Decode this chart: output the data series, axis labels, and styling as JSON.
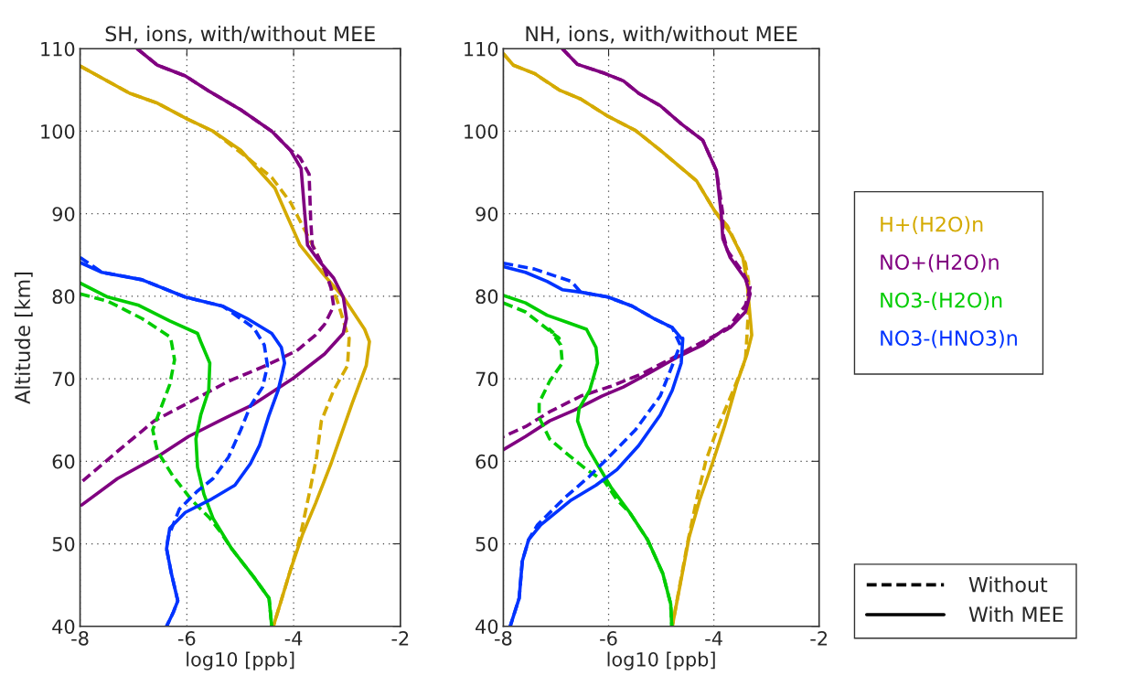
{
  "chart_data": [
    {
      "type": "line",
      "title": "SH, ions, with/without MEE",
      "xlabel": "log10 [ppb]",
      "ylabel": "Altitude [km]",
      "xlim": [
        -8,
        -2
      ],
      "ylim": [
        40,
        110
      ],
      "xticks": [
        -8,
        -6,
        -4,
        -2
      ],
      "yticks": [
        40,
        50,
        60,
        70,
        80,
        90,
        100,
        110
      ],
      "grid": true,
      "series": [
        {
          "color": "#d4aa00",
          "line_style": "dashed",
          "x": [
            -8,
            -7.07,
            -6.55,
            -6.0,
            -5.51,
            -4.87,
            -4.41,
            -4.06,
            -3.83,
            -3.59,
            -3.36,
            -3.19,
            -3.01,
            -2.96,
            -2.99,
            -3.25,
            -3.48,
            -3.57,
            -3.71,
            -3.88,
            -4.06,
            -4.38
          ],
          "values": [
            107.9,
            104.6,
            103.4,
            101.5,
            100,
            96.8,
            94.4,
            91.4,
            88.5,
            85.5,
            82.2,
            79.6,
            75.8,
            74.9,
            71.6,
            68.6,
            64.9,
            60.5,
            56,
            50.8,
            46.8,
            40
          ]
        },
        {
          "color": "#d4aa00",
          "line_style": "solid",
          "x": [
            -8,
            -7.07,
            -6.55,
            -6.0,
            -5.51,
            -4.99,
            -4.35,
            -4.14,
            -3.88,
            -3.42,
            -3.07,
            -2.67,
            -2.58,
            -2.64,
            -2.9,
            -3.1,
            -3.3,
            -3.59,
            -3.83,
            -4.06,
            -4.38
          ],
          "values": [
            107.9,
            104.6,
            103.4,
            101.5,
            100,
            97.7,
            93.1,
            90,
            86.2,
            82.5,
            79.9,
            76,
            74.5,
            71.6,
            67.1,
            63.4,
            59.7,
            54.9,
            51.2,
            46.8,
            40
          ]
        },
        {
          "color": "#800080",
          "line_style": "dashed",
          "x": [
            -6.93,
            -6.55,
            -6.03,
            -5.57,
            -4.99,
            -4.41,
            -4.06,
            -3.88,
            -3.71,
            -3.68,
            -3.65,
            -3.42,
            -3.3,
            -3.25,
            -3.42,
            -3.59,
            -3.94,
            -4.52,
            -5.22,
            -5.97,
            -6.61,
            -7.3,
            -7.97
          ],
          "values": [
            110,
            108,
            106.7,
            104.8,
            102.6,
            100,
            97.7,
            96.8,
            94.8,
            89.2,
            86.2,
            83.3,
            81,
            78.8,
            76.6,
            75.3,
            73.4,
            71.6,
            69.7,
            67.1,
            64.9,
            61.2,
            57.5
          ]
        },
        {
          "color": "#800080",
          "line_style": "solid",
          "x": [
            -6.93,
            -6.55,
            -6.03,
            -5.57,
            -4.99,
            -4.41,
            -4.06,
            -3.86,
            -3.8,
            -3.74,
            -3.54,
            -3.25,
            -3.07,
            -3.01,
            -3.07,
            -3.42,
            -4.0,
            -4.75,
            -5.39,
            -5.97,
            -6.49,
            -7.3,
            -7.97
          ],
          "values": [
            110,
            108,
            106.7,
            104.8,
            102.6,
            100,
            97.7,
            95.5,
            90.7,
            86.2,
            84.4,
            82.2,
            79.9,
            77.3,
            75.5,
            73,
            70.1,
            66.9,
            64.9,
            63,
            60.8,
            57.9,
            54.7
          ]
        },
        {
          "color": "#00cc00",
          "line_style": "dashed",
          "x": [
            -8,
            -7.48,
            -6.84,
            -6.32,
            -6.29,
            -6.23,
            -6.32,
            -6.49,
            -6.64,
            -6.55,
            -6.26,
            -5.91,
            -5.57,
            -5.39,
            -5.16,
            -4.75,
            -4.46,
            -4.41
          ],
          "values": [
            80.3,
            79.4,
            77.3,
            75.1,
            74.5,
            72.3,
            69.3,
            66.4,
            63.8,
            61.2,
            58.2,
            55.3,
            53.1,
            51.6,
            49.4,
            46,
            43.4,
            40
          ]
        },
        {
          "color": "#00cc00",
          "line_style": "solid",
          "x": [
            -8,
            -7.48,
            -6.9,
            -6.32,
            -5.8,
            -5.74,
            -5.57,
            -5.59,
            -5.74,
            -5.83,
            -5.8,
            -5.68,
            -5.51,
            -5.16,
            -4.75,
            -4.46,
            -4.41
          ],
          "values": [
            81.6,
            79.9,
            78.9,
            77,
            75.5,
            74.5,
            71.9,
            68.6,
            65.6,
            62.7,
            59.3,
            56,
            53.1,
            49.4,
            46,
            43.4,
            40
          ]
        },
        {
          "color": "#0033ff",
          "line_style": "dashed",
          "x": [
            -8,
            -7.59,
            -6.84,
            -6.03,
            -5.33,
            -4.75,
            -4.55,
            -4.49,
            -4.58,
            -4.81,
            -4.99,
            -5.22,
            -5.51,
            -5.8,
            -6.14,
            -6.35,
            -6.38,
            -6.29,
            -6.17,
            -6.26,
            -6.38
          ],
          "values": [
            84.7,
            82.9,
            82,
            79.9,
            78.8,
            76.2,
            74.1,
            71.6,
            69,
            66.7,
            63.8,
            60.5,
            57.9,
            56.4,
            54.2,
            50.8,
            49.4,
            46.4,
            43.1,
            41.6,
            40
          ]
        },
        {
          "color": "#0033ff",
          "line_style": "solid",
          "x": [
            -8,
            -7.59,
            -6.84,
            -6.03,
            -5.33,
            -4.87,
            -4.41,
            -4.23,
            -4.17,
            -4.29,
            -4.46,
            -4.64,
            -4.81,
            -5.1,
            -5.57,
            -6.03,
            -6.32,
            -6.38,
            -6.29,
            -6.17,
            -6.26,
            -6.38
          ],
          "values": [
            84.1,
            82.9,
            82,
            79.9,
            78.8,
            77.3,
            75.5,
            73.8,
            71.9,
            68.6,
            65.6,
            61.9,
            59.7,
            57.1,
            55.3,
            53.8,
            51.9,
            49.4,
            46.4,
            43.1,
            41.6,
            40
          ]
        }
      ]
    },
    {
      "type": "line",
      "title": "NH, ions, with/without MEE",
      "xlabel": "log10 [ppb]",
      "xlim": [
        -8,
        -2
      ],
      "ylim": [
        40,
        110
      ],
      "xticks": [
        -8,
        -6,
        -4,
        -2
      ],
      "yticks": [
        40,
        50,
        60,
        70,
        80,
        90,
        100,
        110
      ],
      "grid": true,
      "annotations": [
        "Without",
        "With MEE"
      ],
      "series": [
        {
          "color": "#d4aa00",
          "line_style": "dashed",
          "x": [
            -8,
            -7.81,
            -7.41,
            -6.94,
            -6.53,
            -6.01,
            -5.49,
            -5.02,
            -4.33,
            -3.98,
            -3.74,
            -3.4,
            -3.34,
            -3.34,
            -3.37,
            -3.4,
            -3.63,
            -3.92,
            -4.15,
            -4.33,
            -4.5,
            -4.79
          ],
          "values": [
            109.4,
            108,
            107,
            105,
            103.9,
            101.8,
            100.1,
            97.7,
            94,
            90.3,
            88.5,
            84,
            81.8,
            78.9,
            75.3,
            72.3,
            68.6,
            64.2,
            60.1,
            55.3,
            50.1,
            40
          ]
        },
        {
          "name": "H+(H2O)n",
          "color": "#d4aa00",
          "line_style": "solid",
          "x": [
            -8,
            -7.81,
            -7.41,
            -6.94,
            -6.53,
            -6.01,
            -5.49,
            -5.02,
            -4.33,
            -3.98,
            -3.69,
            -3.45,
            -3.37,
            -3.34,
            -3.28,
            -3.37,
            -3.57,
            -3.8,
            -4.03,
            -4.27,
            -4.47,
            -4.79
          ],
          "values": [
            109.4,
            108,
            107,
            105,
            103.9,
            101.8,
            100.1,
            97.7,
            94,
            90.3,
            87.7,
            84.7,
            81.8,
            79.6,
            75.3,
            73,
            69.3,
            64.2,
            59.7,
            55.3,
            50.8,
            40
          ]
        },
        {
          "color": "#800080",
          "line_style": "dashed",
          "x": [
            -6.88,
            -6.59,
            -6.07,
            -5.72,
            -5.43,
            -5.02,
            -4.62,
            -4.21,
            -3.95,
            -3.83,
            -3.83,
            -3.74,
            -3.45,
            -3.31,
            -3.4,
            -3.63,
            -3.74,
            -4.21,
            -4.79,
            -5.37,
            -5.95,
            -6.53,
            -7.12,
            -7.58,
            -8
          ],
          "values": [
            110,
            108.1,
            107,
            106.1,
            104.6,
            103.1,
            100.9,
            98.9,
            95.2,
            90,
            87.7,
            85.5,
            82.9,
            81.1,
            78.9,
            77,
            76,
            74.5,
            72.5,
            70.6,
            69.1,
            67.9,
            66,
            64.2,
            63
          ]
        },
        {
          "name": "NO+(H2O)n",
          "color": "#800080",
          "line_style": "solid",
          "x": [
            -6.88,
            -6.59,
            -6.07,
            -5.72,
            -5.43,
            -5.02,
            -4.62,
            -4.21,
            -3.95,
            -3.86,
            -3.83,
            -3.69,
            -3.4,
            -3.31,
            -3.4,
            -3.69,
            -3.8,
            -4.21,
            -4.67,
            -5.2,
            -5.72,
            -6.13,
            -6.65,
            -7.12,
            -7.58,
            -8
          ],
          "values": [
            110,
            108.1,
            107,
            106.1,
            104.6,
            103.1,
            100.9,
            98.9,
            95.2,
            90,
            87,
            84.7,
            82.1,
            80.3,
            78.1,
            76.2,
            76,
            74.1,
            72.7,
            70.8,
            69,
            67.9,
            66.2,
            64.9,
            63,
            61.4
          ]
        },
        {
          "color": "#00cc00",
          "line_style": "dashed",
          "x": [
            -8,
            -7.58,
            -6.94,
            -7.12,
            -6.91,
            -6.88,
            -7.12,
            -7.32,
            -7.32,
            -7.12,
            -6.77,
            -6.42,
            -6.07,
            -5.84,
            -5.6,
            -5.26,
            -4.97,
            -4.82,
            -4.8
          ],
          "values": [
            79.2,
            78.1,
            74.9,
            76,
            74.1,
            71.9,
            69.7,
            67.1,
            65.3,
            62.7,
            60.8,
            59,
            57.5,
            55.3,
            53.8,
            50.5,
            46.4,
            42.7,
            40
          ]
        },
        {
          "name": "NO3-(H2O)n",
          "color": "#00cc00",
          "line_style": "solid",
          "x": [
            -8,
            -7.58,
            -7.17,
            -6.77,
            -6.42,
            -6.24,
            -6.21,
            -6.36,
            -6.56,
            -6.59,
            -6.42,
            -6.19,
            -5.95,
            -5.6,
            -5.26,
            -4.97,
            -4.82,
            -4.8
          ],
          "values": [
            80.1,
            79.2,
            77.7,
            76.8,
            76,
            73.8,
            71.9,
            68.6,
            66.4,
            64.9,
            61.9,
            59.4,
            56.8,
            53.8,
            50.5,
            46.4,
            42.7,
            40
          ]
        },
        {
          "color": "#0033ff",
          "line_style": "dashed",
          "x": [
            -8,
            -7.41,
            -6.71,
            -6.53,
            -6.01,
            -5.55,
            -5.14,
            -4.79,
            -4.64,
            -4.79,
            -5.02,
            -5.49,
            -5.95,
            -6.36,
            -6.83,
            -7.35,
            -7.52,
            -7.64,
            -7.7,
            -7.87
          ],
          "values": [
            84,
            83.3,
            81.8,
            80.5,
            79.9,
            78.8,
            77.3,
            76.2,
            74.1,
            71.6,
            67.9,
            63.8,
            60.8,
            58.2,
            55.6,
            52.3,
            50.5,
            47.9,
            43.4,
            40
          ]
        },
        {
          "name": "NO3-(HNO3)n",
          "color": "#0033ff",
          "line_style": "solid",
          "x": [
            -8,
            -7.58,
            -7.17,
            -6.88,
            -6.53,
            -6.01,
            -5.55,
            -5.14,
            -4.79,
            -4.62,
            -4.59,
            -4.62,
            -4.79,
            -5.02,
            -5.43,
            -5.84,
            -6.24,
            -6.71,
            -7.29,
            -7.52,
            -7.64,
            -7.7,
            -7.87
          ],
          "values": [
            83.6,
            82.9,
            81.8,
            80.8,
            80.5,
            79.9,
            78.8,
            77.3,
            76.2,
            74.9,
            74.9,
            71.9,
            68.6,
            65.6,
            61.9,
            59,
            57.1,
            55.3,
            52.3,
            50.5,
            47.9,
            43.4,
            40
          ]
        }
      ]
    }
  ]
}
